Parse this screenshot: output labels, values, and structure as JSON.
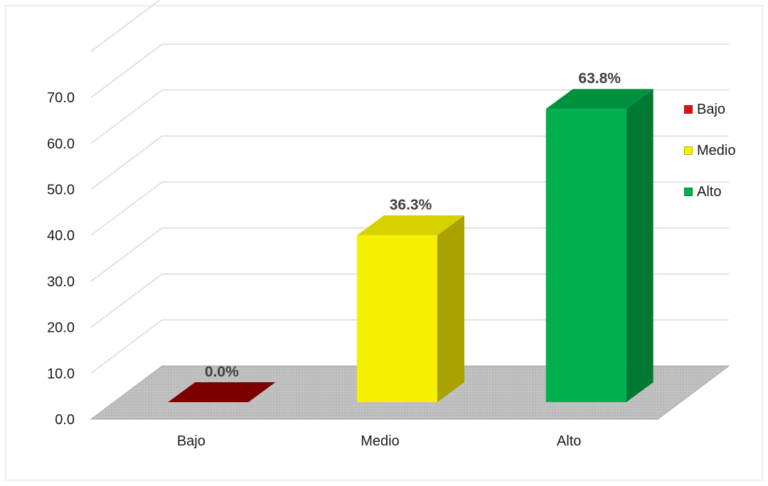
{
  "chart_data": {
    "type": "bar",
    "categories": [
      "Bajo",
      "Medio",
      "Alto"
    ],
    "values": [
      0.0,
      36.3,
      63.8
    ],
    "data_labels": [
      "0.0%",
      "36.3%",
      "63.8%"
    ],
    "yticks": [
      "0.0",
      "10.0",
      "20.0",
      "30.0",
      "40.0",
      "50.0",
      "60.0",
      "70.0"
    ],
    "ylim": [
      0,
      80
    ],
    "grid": true,
    "three_d": true,
    "legend_position": "right",
    "legend": [
      "Bajo",
      "Medio",
      "Alto"
    ],
    "colors": {
      "Bajo": {
        "front": "#7b0000",
        "top": "#8c0000",
        "side": "#5a0000"
      },
      "Medio": {
        "front": "#f5f000",
        "top": "#d6d200",
        "side": "#a8a300"
      },
      "Alto": {
        "front": "#00b04f",
        "top": "#00913f",
        "side": "#007a33"
      }
    },
    "floor_color": "#bfbfbf",
    "gridline_color": "#d9d9d9",
    "label_color": "#404040"
  }
}
